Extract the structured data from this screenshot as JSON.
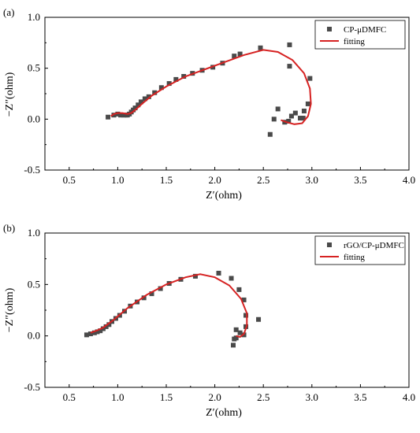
{
  "chart_data": [
    {
      "type": "scatter",
      "panel_label": "(a)",
      "xlabel": "Z′(ohm)",
      "ylabel": "−Z″(ohm)",
      "xlim": [
        0.25,
        4.0
      ],
      "ylim": [
        -0.5,
        1.0
      ],
      "x_ticks": [
        "0.5",
        "1.0",
        "1.5",
        "2.0",
        "2.5",
        "3.0",
        "3.5",
        "4.0"
      ],
      "y_ticks": [
        "-0.5",
        "0.0",
        "0.5",
        "1.0"
      ],
      "legend_position": "top-right",
      "series": [
        {
          "name": "CP-μDMFC",
          "kind": "marker",
          "color": "#4a4a4a",
          "points": [
            [
              0.9,
              0.02
            ],
            [
              0.96,
              0.04
            ],
            [
              1.0,
              0.05
            ],
            [
              1.03,
              0.04
            ],
            [
              1.06,
              0.04
            ],
            [
              1.08,
              0.04
            ],
            [
              1.1,
              0.04
            ],
            [
              1.12,
              0.05
            ],
            [
              1.14,
              0.07
            ],
            [
              1.16,
              0.09
            ],
            [
              1.18,
              0.11
            ],
            [
              1.21,
              0.14
            ],
            [
              1.24,
              0.17
            ],
            [
              1.28,
              0.2
            ],
            [
              1.32,
              0.22
            ],
            [
              1.38,
              0.26
            ],
            [
              1.45,
              0.31
            ],
            [
              1.53,
              0.35
            ],
            [
              1.6,
              0.39
            ],
            [
              1.68,
              0.42
            ],
            [
              1.77,
              0.45
            ],
            [
              1.87,
              0.48
            ],
            [
              1.98,
              0.51
            ],
            [
              2.08,
              0.55
            ],
            [
              2.2,
              0.62
            ],
            [
              2.26,
              0.64
            ],
            [
              2.47,
              0.7
            ],
            [
              2.77,
              0.73
            ],
            [
              2.77,
              0.52
            ],
            [
              2.98,
              0.4
            ],
            [
              2.96,
              0.15
            ],
            [
              2.92,
              0.08
            ],
            [
              2.91,
              0.01
            ],
            [
              2.88,
              0.01
            ],
            [
              2.83,
              0.06
            ],
            [
              2.79,
              0.03
            ],
            [
              2.76,
              -0.02
            ],
            [
              2.72,
              -0.03
            ],
            [
              2.65,
              0.1
            ],
            [
              2.61,
              0.0
            ],
            [
              2.57,
              -0.15
            ]
          ]
        },
        {
          "name": "fitting",
          "kind": "line",
          "color": "#d62222",
          "points": [
            [
              0.93,
              0.03
            ],
            [
              0.96,
              0.05
            ],
            [
              1.0,
              0.06
            ],
            [
              1.05,
              0.06
            ],
            [
              1.1,
              0.05
            ],
            [
              1.14,
              0.06
            ],
            [
              1.18,
              0.09
            ],
            [
              1.25,
              0.15
            ],
            [
              1.35,
              0.23
            ],
            [
              1.5,
              0.32
            ],
            [
              1.7,
              0.42
            ],
            [
              1.9,
              0.49
            ],
            [
              2.1,
              0.56
            ],
            [
              2.3,
              0.63
            ],
            [
              2.5,
              0.68
            ],
            [
              2.65,
              0.66
            ],
            [
              2.8,
              0.58
            ],
            [
              2.92,
              0.45
            ],
            [
              2.98,
              0.3
            ],
            [
              2.99,
              0.15
            ],
            [
              2.96,
              0.03
            ],
            [
              2.9,
              -0.04
            ],
            [
              2.82,
              -0.05
            ],
            [
              2.74,
              -0.03
            ],
            [
              2.68,
              -0.01
            ]
          ]
        }
      ]
    },
    {
      "type": "scatter",
      "panel_label": "(b)",
      "xlabel": "Z′(ohm)",
      "ylabel": "−Z″(ohm)",
      "xlim": [
        0.25,
        4.0
      ],
      "ylim": [
        -0.5,
        1.0
      ],
      "x_ticks": [
        "0.5",
        "1.0",
        "1.5",
        "2.0",
        "2.5",
        "3.0",
        "3.5",
        "4.0"
      ],
      "y_ticks": [
        "-0.5",
        "0.0",
        "0.5",
        "1.0"
      ],
      "legend_position": "top-right",
      "series": [
        {
          "name": "rGO/CP-μDMFC",
          "kind": "marker",
          "color": "#4a4a4a",
          "points": [
            [
              0.68,
              0.01
            ],
            [
              0.72,
              0.02
            ],
            [
              0.76,
              0.03
            ],
            [
              0.79,
              0.04
            ],
            [
              0.82,
              0.05
            ],
            [
              0.85,
              0.07
            ],
            [
              0.88,
              0.09
            ],
            [
              0.91,
              0.11
            ],
            [
              0.94,
              0.14
            ],
            [
              0.98,
              0.17
            ],
            [
              1.02,
              0.2
            ],
            [
              1.07,
              0.24
            ],
            [
              1.13,
              0.29
            ],
            [
              1.2,
              0.33
            ],
            [
              1.27,
              0.37
            ],
            [
              1.35,
              0.41
            ],
            [
              1.44,
              0.46
            ],
            [
              1.53,
              0.51
            ],
            [
              1.65,
              0.55
            ],
            [
              1.8,
              0.58
            ],
            [
              2.04,
              0.61
            ],
            [
              2.17,
              0.56
            ],
            [
              2.25,
              0.45
            ],
            [
              2.3,
              0.35
            ],
            [
              2.32,
              0.2
            ],
            [
              2.32,
              0.09
            ],
            [
              2.3,
              0.01
            ],
            [
              2.26,
              0.03
            ],
            [
              2.22,
              0.06
            ],
            [
              2.2,
              -0.03
            ],
            [
              2.19,
              -0.09
            ],
            [
              2.45,
              0.16
            ],
            [
              2.22,
              -0.02
            ]
          ]
        },
        {
          "name": "fitting",
          "kind": "line",
          "color": "#d62222",
          "points": [
            [
              0.72,
              0.03
            ],
            [
              0.78,
              0.05
            ],
            [
              0.85,
              0.08
            ],
            [
              0.95,
              0.15
            ],
            [
              1.1,
              0.27
            ],
            [
              1.3,
              0.4
            ],
            [
              1.5,
              0.5
            ],
            [
              1.7,
              0.57
            ],
            [
              1.85,
              0.6
            ],
            [
              2.0,
              0.57
            ],
            [
              2.15,
              0.49
            ],
            [
              2.27,
              0.36
            ],
            [
              2.33,
              0.22
            ],
            [
              2.33,
              0.1
            ],
            [
              2.3,
              0.02
            ],
            [
              2.26,
              -0.01
            ],
            [
              2.22,
              0.0
            ]
          ]
        }
      ]
    }
  ]
}
